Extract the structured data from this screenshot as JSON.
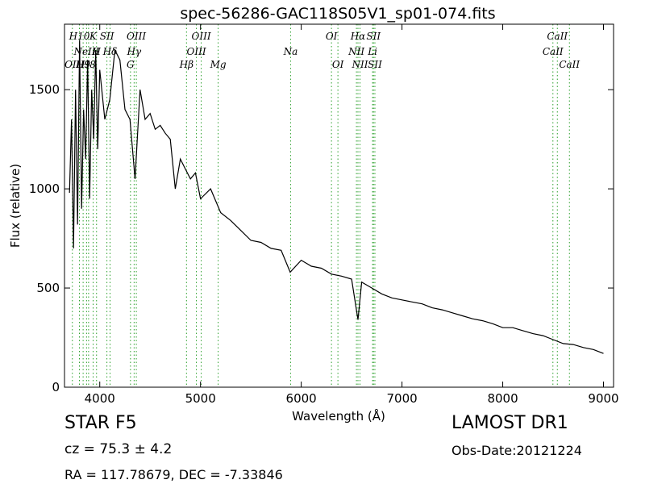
{
  "chart_data": {
    "type": "line",
    "title": "spec-56286-GAC118S05V1_sp01-074.fits",
    "xlabel": "Wavelength (Å)",
    "ylabel": "Flux (relative)",
    "xlim": [
      3650,
      9100
    ],
    "ylim": [
      0,
      1830
    ],
    "xticks": [
      4000,
      5000,
      6000,
      7000,
      8000,
      9000
    ],
    "yticks": [
      0,
      500,
      1000,
      1500
    ],
    "grid": false,
    "series_color": "#000000",
    "line_marker_color": "#2ca02c",
    "series": [
      {
        "x": [
          3700,
          3720,
          3740,
          3760,
          3780,
          3800,
          3820,
          3840,
          3860,
          3880,
          3900,
          3920,
          3940,
          3960,
          3980,
          4000,
          4050,
          4100,
          4150,
          4200,
          4250,
          4300,
          4350,
          4400,
          4450,
          4500,
          4550,
          4600,
          4650,
          4700,
          4750,
          4800,
          4850,
          4900,
          4950,
          5000,
          5100,
          5200,
          5300,
          5400,
          5500,
          5600,
          5700,
          5800,
          5890,
          6000,
          6100,
          6200,
          6300,
          6400,
          6500,
          6563,
          6600,
          6700,
          6800,
          6900,
          7000,
          7100,
          7200,
          7300,
          7400,
          7500,
          7600,
          7700,
          7800,
          7900,
          8000,
          8100,
          8200,
          8300,
          8400,
          8500,
          8600,
          8700,
          8800,
          8900,
          9000
        ],
        "y": [
          980,
          1350,
          700,
          1500,
          820,
          1750,
          900,
          1400,
          1150,
          1650,
          950,
          1500,
          1250,
          1700,
          1200,
          1600,
          1350,
          1450,
          1700,
          1650,
          1400,
          1350,
          1050,
          1500,
          1350,
          1380,
          1300,
          1320,
          1280,
          1250,
          1000,
          1150,
          1100,
          1050,
          1080,
          950,
          1000,
          880,
          840,
          790,
          740,
          730,
          700,
          690,
          580,
          640,
          610,
          600,
          570,
          560,
          545,
          340,
          530,
          500,
          470,
          450,
          440,
          430,
          420,
          400,
          390,
          375,
          360,
          345,
          335,
          320,
          300,
          300,
          285,
          270,
          260,
          240,
          220,
          215,
          200,
          190,
          170
        ]
      }
    ],
    "lines": [
      {
        "x": 3728,
        "label": "OII",
        "tier": 2
      },
      {
        "x": 3798,
        "label": "H10",
        "tier": 0
      },
      {
        "x": 3835,
        "label": "H9",
        "tier": 2
      },
      {
        "x": 3869,
        "label": "NeIII",
        "tier": 1
      },
      {
        "x": 3889,
        "label": "H8",
        "tier": 2
      },
      {
        "x": 3934,
        "label": "K",
        "tier": 0
      },
      {
        "x": 3968,
        "label": "H",
        "tier": 1
      },
      {
        "x": 4071,
        "label": "SII",
        "tier": 0
      },
      {
        "x": 4102,
        "label": "Hδ",
        "tier": 1
      },
      {
        "x": 4305,
        "label": "G",
        "tier": 2
      },
      {
        "x": 4341,
        "label": "Hγ",
        "tier": 1
      },
      {
        "x": 4363,
        "label": "OIII",
        "tier": 0
      },
      {
        "x": 4861,
        "label": "Hβ",
        "tier": 2
      },
      {
        "x": 4959,
        "label": "OIII",
        "tier": 1
      },
      {
        "x": 5007,
        "label": "OIII",
        "tier": 0
      },
      {
        "x": 5175,
        "label": "Mg",
        "tier": 2
      },
      {
        "x": 5894,
        "label": "Na",
        "tier": 1
      },
      {
        "x": 6300,
        "label": "OI",
        "tier": 0
      },
      {
        "x": 6364,
        "label": "OI",
        "tier": 2
      },
      {
        "x": 6548,
        "label": "NII",
        "tier": 1
      },
      {
        "x": 6563,
        "label": "Hα",
        "tier": 0
      },
      {
        "x": 6583,
        "label": "NII",
        "tier": 2
      },
      {
        "x": 6717,
        "label": "SII",
        "tier": 0
      },
      {
        "x": 6731,
        "label": "SII",
        "tier": 2
      },
      {
        "x": 6708,
        "label": "Li",
        "tier": 1
      },
      {
        "x": 8498,
        "label": "CaII",
        "tier": 1
      },
      {
        "x": 8542,
        "label": "CaII",
        "tier": 0
      },
      {
        "x": 8662,
        "label": "CaII",
        "tier": 2
      }
    ]
  },
  "info": {
    "class": "STAR   F5",
    "survey": "LAMOST DR1",
    "cz": "cz = 75.3  ± 4.2",
    "obs_date": "Obs-Date:20121224",
    "radec": "RA = 117.78679, DEC = -7.33846"
  }
}
